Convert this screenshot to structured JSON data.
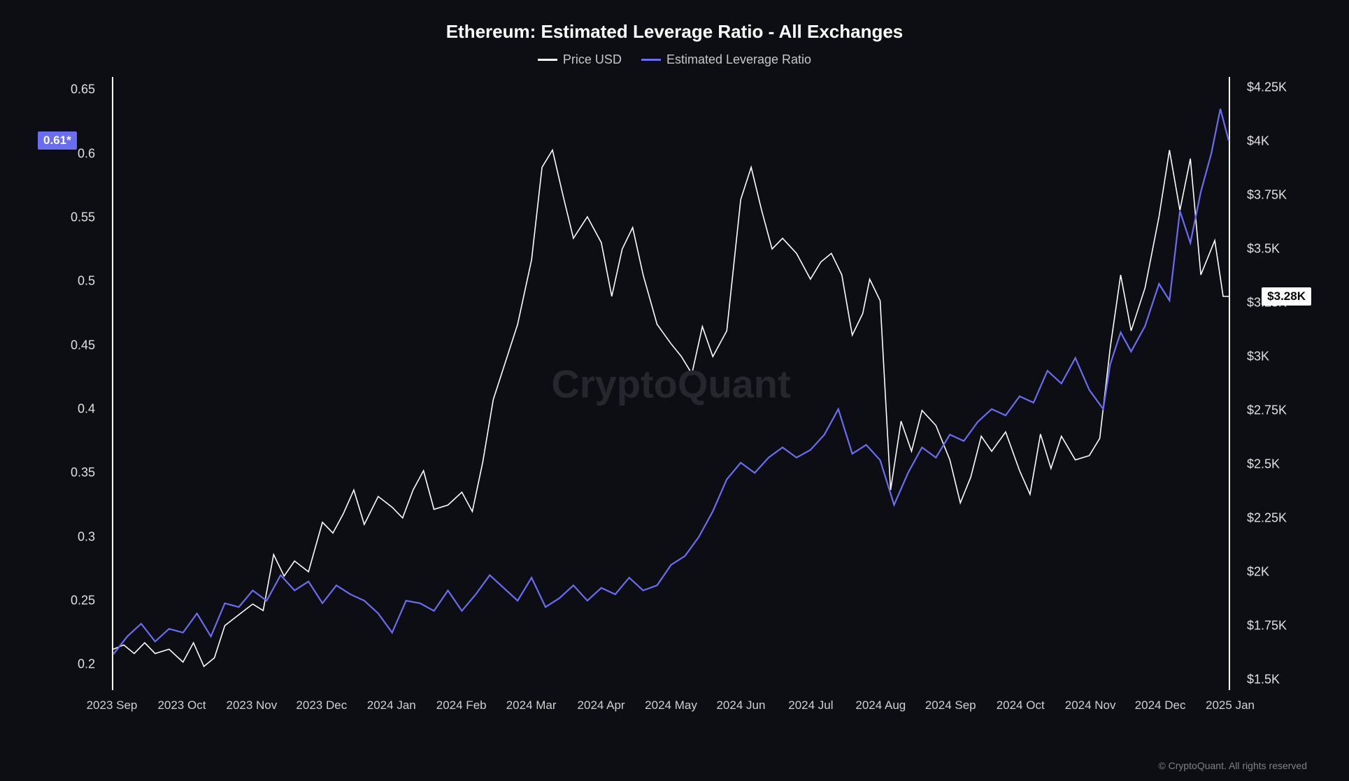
{
  "chart": {
    "type": "line-dual-axis",
    "title": "Ethereum: Estimated Leverage Ratio - All Exchanges",
    "background_color": "#0d0d14",
    "title_color": "#ffffff",
    "title_fontsize": 26,
    "label_fontsize": 18,
    "tick_fontsize": 18,
    "axis_line_color": "#ffffff",
    "watermark": "CryptoQuant",
    "watermark_color": "#26262e",
    "copyright": "© CryptoQuant. All rights reserved",
    "legend": {
      "items": [
        {
          "label": "Price USD",
          "color": "#ffffff"
        },
        {
          "label": "Estimated Leverage Ratio",
          "color": "#6b6df0"
        }
      ]
    },
    "x_axis": {
      "ticks": [
        "2023 Sep",
        "2023 Oct",
        "2023 Nov",
        "2023 Dec",
        "2024 Jan",
        "2024 Feb",
        "2024 Mar",
        "2024 Apr",
        "2024 May",
        "2024 Jun",
        "2024 Jul",
        "2024 Aug",
        "2024 Sep",
        "2024 Oct",
        "2024 Nov",
        "2024 Dec",
        "2025 Jan"
      ],
      "range": [
        0,
        16
      ]
    },
    "y_axis_left": {
      "label": "Estimated Leverage Ratio",
      "ticks": [
        0.2,
        0.25,
        0.3,
        0.35,
        0.4,
        0.45,
        0.5,
        0.55,
        0.6,
        0.65
      ],
      "range": [
        0.18,
        0.66
      ],
      "current_marker": {
        "value": 0.61,
        "text": "0.61*",
        "color": "#6b6df0"
      }
    },
    "y_axis_right": {
      "label": "Price USD",
      "ticks": [
        1500,
        1750,
        2000,
        2250,
        2500,
        2750,
        3000,
        3250,
        3500,
        3750,
        4000,
        4250
      ],
      "tick_labels": [
        "$1.5K",
        "$1.75K",
        "$2K",
        "$2.25K",
        "$2.5K",
        "$2.75K",
        "$3K",
        "$3.25K",
        "$3.5K",
        "$3.75K",
        "$4K",
        "$4.25K"
      ],
      "range": [
        1450,
        4300
      ],
      "current_marker": {
        "value": 3280,
        "text": "$3.28K",
        "color": "#ffffff"
      }
    },
    "series": [
      {
        "name": "Price USD",
        "color": "#ffffff",
        "line_width": 1.6,
        "y_axis": "right",
        "data": [
          [
            0.0,
            1640
          ],
          [
            0.15,
            1660
          ],
          [
            0.3,
            1620
          ],
          [
            0.45,
            1670
          ],
          [
            0.6,
            1620
          ],
          [
            0.8,
            1640
          ],
          [
            1.0,
            1580
          ],
          [
            1.15,
            1670
          ],
          [
            1.3,
            1560
          ],
          [
            1.45,
            1600
          ],
          [
            1.6,
            1750
          ],
          [
            1.8,
            1800
          ],
          [
            2.0,
            1850
          ],
          [
            2.15,
            1820
          ],
          [
            2.3,
            2080
          ],
          [
            2.45,
            1980
          ],
          [
            2.6,
            2050
          ],
          [
            2.8,
            2000
          ],
          [
            3.0,
            2230
          ],
          [
            3.15,
            2180
          ],
          [
            3.3,
            2270
          ],
          [
            3.45,
            2380
          ],
          [
            3.6,
            2220
          ],
          [
            3.8,
            2350
          ],
          [
            4.0,
            2300
          ],
          [
            4.15,
            2250
          ],
          [
            4.3,
            2380
          ],
          [
            4.45,
            2470
          ],
          [
            4.6,
            2290
          ],
          [
            4.8,
            2310
          ],
          [
            5.0,
            2370
          ],
          [
            5.15,
            2280
          ],
          [
            5.3,
            2510
          ],
          [
            5.45,
            2800
          ],
          [
            5.6,
            2950
          ],
          [
            5.8,
            3150
          ],
          [
            6.0,
            3450
          ],
          [
            6.15,
            3880
          ],
          [
            6.3,
            3960
          ],
          [
            6.45,
            3750
          ],
          [
            6.6,
            3550
          ],
          [
            6.8,
            3650
          ],
          [
            7.0,
            3530
          ],
          [
            7.15,
            3280
          ],
          [
            7.3,
            3500
          ],
          [
            7.45,
            3600
          ],
          [
            7.6,
            3380
          ],
          [
            7.8,
            3150
          ],
          [
            8.0,
            3060
          ],
          [
            8.15,
            3000
          ],
          [
            8.3,
            2920
          ],
          [
            8.45,
            3140
          ],
          [
            8.6,
            3000
          ],
          [
            8.8,
            3120
          ],
          [
            9.0,
            3730
          ],
          [
            9.15,
            3880
          ],
          [
            9.3,
            3680
          ],
          [
            9.45,
            3500
          ],
          [
            9.6,
            3550
          ],
          [
            9.8,
            3480
          ],
          [
            10.0,
            3360
          ],
          [
            10.15,
            3440
          ],
          [
            10.3,
            3480
          ],
          [
            10.45,
            3380
          ],
          [
            10.6,
            3100
          ],
          [
            10.75,
            3200
          ],
          [
            10.85,
            3360
          ],
          [
            11.0,
            3260
          ],
          [
            11.15,
            2380
          ],
          [
            11.3,
            2700
          ],
          [
            11.45,
            2560
          ],
          [
            11.6,
            2750
          ],
          [
            11.8,
            2680
          ],
          [
            12.0,
            2520
          ],
          [
            12.15,
            2320
          ],
          [
            12.3,
            2440
          ],
          [
            12.45,
            2630
          ],
          [
            12.6,
            2560
          ],
          [
            12.8,
            2650
          ],
          [
            13.0,
            2470
          ],
          [
            13.15,
            2360
          ],
          [
            13.3,
            2640
          ],
          [
            13.45,
            2480
          ],
          [
            13.6,
            2630
          ],
          [
            13.8,
            2520
          ],
          [
            14.0,
            2540
          ],
          [
            14.15,
            2620
          ],
          [
            14.3,
            3040
          ],
          [
            14.45,
            3380
          ],
          [
            14.6,
            3120
          ],
          [
            14.8,
            3320
          ],
          [
            15.0,
            3650
          ],
          [
            15.15,
            3960
          ],
          [
            15.3,
            3680
          ],
          [
            15.45,
            3920
          ],
          [
            15.6,
            3380
          ],
          [
            15.8,
            3540
          ],
          [
            15.92,
            3280
          ],
          [
            16.0,
            3280
          ]
        ]
      },
      {
        "name": "Estimated Leverage Ratio",
        "color": "#6b6df0",
        "line_width": 2.2,
        "y_axis": "left",
        "data": [
          [
            0.0,
            0.208
          ],
          [
            0.2,
            0.222
          ],
          [
            0.4,
            0.232
          ],
          [
            0.6,
            0.218
          ],
          [
            0.8,
            0.228
          ],
          [
            1.0,
            0.225
          ],
          [
            1.2,
            0.24
          ],
          [
            1.4,
            0.222
          ],
          [
            1.6,
            0.248
          ],
          [
            1.8,
            0.245
          ],
          [
            2.0,
            0.258
          ],
          [
            2.2,
            0.25
          ],
          [
            2.4,
            0.27
          ],
          [
            2.6,
            0.258
          ],
          [
            2.8,
            0.265
          ],
          [
            3.0,
            0.248
          ],
          [
            3.2,
            0.262
          ],
          [
            3.4,
            0.255
          ],
          [
            3.6,
            0.25
          ],
          [
            3.8,
            0.24
          ],
          [
            4.0,
            0.225
          ],
          [
            4.2,
            0.25
          ],
          [
            4.4,
            0.248
          ],
          [
            4.6,
            0.242
          ],
          [
            4.8,
            0.258
          ],
          [
            5.0,
            0.242
          ],
          [
            5.2,
            0.255
          ],
          [
            5.4,
            0.27
          ],
          [
            5.6,
            0.26
          ],
          [
            5.8,
            0.25
          ],
          [
            6.0,
            0.268
          ],
          [
            6.2,
            0.245
          ],
          [
            6.4,
            0.252
          ],
          [
            6.6,
            0.262
          ],
          [
            6.8,
            0.25
          ],
          [
            7.0,
            0.26
          ],
          [
            7.2,
            0.255
          ],
          [
            7.4,
            0.268
          ],
          [
            7.6,
            0.258
          ],
          [
            7.8,
            0.262
          ],
          [
            8.0,
            0.278
          ],
          [
            8.2,
            0.285
          ],
          [
            8.4,
            0.3
          ],
          [
            8.6,
            0.32
          ],
          [
            8.8,
            0.345
          ],
          [
            9.0,
            0.358
          ],
          [
            9.2,
            0.35
          ],
          [
            9.4,
            0.362
          ],
          [
            9.6,
            0.37
          ],
          [
            9.8,
            0.362
          ],
          [
            10.0,
            0.368
          ],
          [
            10.2,
            0.38
          ],
          [
            10.4,
            0.4
          ],
          [
            10.6,
            0.365
          ],
          [
            10.8,
            0.372
          ],
          [
            11.0,
            0.36
          ],
          [
            11.2,
            0.325
          ],
          [
            11.4,
            0.35
          ],
          [
            11.6,
            0.37
          ],
          [
            11.8,
            0.362
          ],
          [
            12.0,
            0.38
          ],
          [
            12.2,
            0.375
          ],
          [
            12.4,
            0.39
          ],
          [
            12.6,
            0.4
          ],
          [
            12.8,
            0.395
          ],
          [
            13.0,
            0.41
          ],
          [
            13.2,
            0.405
          ],
          [
            13.4,
            0.43
          ],
          [
            13.6,
            0.42
          ],
          [
            13.8,
            0.44
          ],
          [
            14.0,
            0.415
          ],
          [
            14.2,
            0.4
          ],
          [
            14.3,
            0.435
          ],
          [
            14.45,
            0.46
          ],
          [
            14.6,
            0.445
          ],
          [
            14.8,
            0.465
          ],
          [
            15.0,
            0.498
          ],
          [
            15.15,
            0.485
          ],
          [
            15.3,
            0.555
          ],
          [
            15.45,
            0.53
          ],
          [
            15.6,
            0.57
          ],
          [
            15.75,
            0.6
          ],
          [
            15.88,
            0.635
          ],
          [
            16.0,
            0.61
          ]
        ]
      }
    ]
  }
}
